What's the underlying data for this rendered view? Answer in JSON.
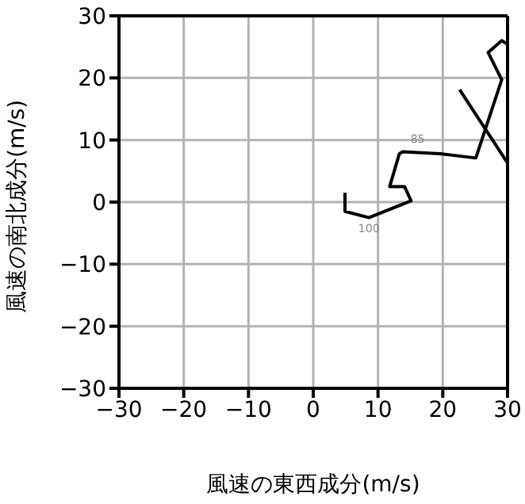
{
  "chart_data": {
    "type": "line",
    "xlabel": "風速の東西成分(m/s)",
    "ylabel": "風速の南北成分(m/s)",
    "x": [
      4.9,
      4.9,
      8.6,
      15.1,
      14.1,
      11.8,
      13.3,
      13.8,
      19.6,
      25.1,
      29.1,
      27.0,
      29.1,
      29.9,
      null,
      30.0,
      22.6
    ],
    "series": [
      {
        "color": "#000000",
        "values": [
          1.5,
          -1.5,
          -2.5,
          0.2,
          2.5,
          2.5,
          7.8,
          8.1,
          7.8,
          7.1,
          19.7,
          24.1,
          26.0,
          25.5,
          null,
          6.3,
          18.1
        ]
      }
    ],
    "xlim": [
      -30,
      30
    ],
    "ylim": [
      -30,
      30
    ],
    "xticks": [
      {
        "value": -30,
        "label": "−30"
      },
      {
        "value": -20,
        "label": "−20"
      },
      {
        "value": -10,
        "label": "−10"
      },
      0,
      10,
      20,
      30
    ],
    "yticks": [
      {
        "value": -30,
        "label": "−30"
      },
      {
        "value": -20,
        "label": "−20"
      },
      {
        "value": -10,
        "label": "−10"
      },
      0,
      10,
      20,
      30
    ],
    "grid": true,
    "marker": "none",
    "line_style": "solid",
    "legend": false,
    "annotations": [
      {
        "text": "85",
        "x": 13.8,
        "y": 8.1
      },
      {
        "text": "100",
        "x": 8.6,
        "y": -2.5
      }
    ]
  }
}
